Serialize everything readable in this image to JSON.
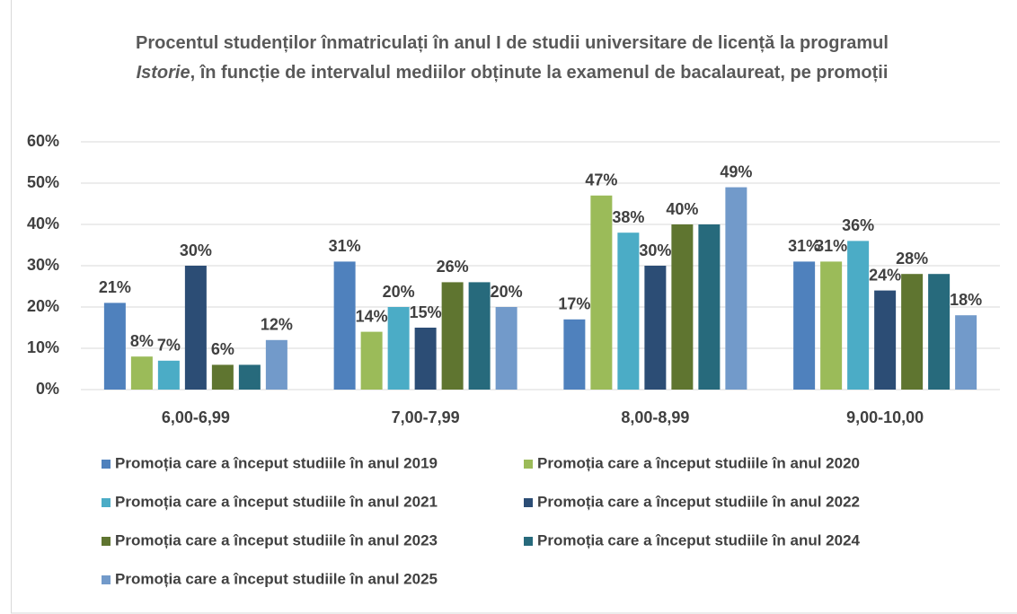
{
  "chart_data": {
    "type": "bar",
    "title": [
      "Procentul studenților înmatriculați în anul I de studii universitare de licență la programul ",
      "Istorie",
      ", în funcție de intervalul mediilor obținute la examenul de bacalaureat, pe promoții"
    ],
    "categories": [
      "6,00-6,99",
      "7,00-7,99",
      "8,00-8,99",
      "9,00-10,00"
    ],
    "series": [
      {
        "name": "Promoția care a început studiile în anul 2019",
        "color": "#4f81bd",
        "values": [
          21,
          31,
          17,
          31
        ],
        "value_labels": [
          "21%",
          "31%",
          "17%",
          "31%"
        ]
      },
      {
        "name": "Promoția care a început studiile în anul 2020",
        "color": "#9bbb59",
        "values": [
          8,
          14,
          47,
          31
        ],
        "value_labels": [
          "8%",
          "14%",
          "47%",
          "31%"
        ]
      },
      {
        "name": "Promoția care a început studiile în anul 2021",
        "color": "#4bacc6",
        "values": [
          7,
          20,
          38,
          36
        ],
        "value_labels": [
          "7%",
          "20%",
          "38%",
          "36%"
        ]
      },
      {
        "name": "Promoția care a început studiile în anul 2022",
        "color": "#2c4d75",
        "values": [
          30,
          15,
          30,
          24
        ],
        "value_labels": [
          "30%",
          "15%",
          "30%",
          "24%"
        ]
      },
      {
        "name": "Promoția care a început studiile în anul 2023",
        "color": "#5f7530",
        "values": [
          6,
          26,
          40,
          28
        ],
        "value_labels": [
          "6%",
          "26%",
          "40%",
          "28%"
        ]
      },
      {
        "name": "Promoția care a început studiile în anul 2024",
        "color": "#276a7c",
        "values": [
          6,
          26,
          40,
          28
        ]
      },
      {
        "name": "Promoția care a început studiile în anul 2025",
        "color": "#729aca",
        "values": [
          12,
          20,
          49,
          18
        ],
        "value_labels": [
          "12%",
          "20%",
          "49%",
          "18%"
        ]
      }
    ],
    "ylim": [
      0,
      60
    ],
    "yticks": [
      {
        "value": 0,
        "label": "0%"
      },
      {
        "value": 10,
        "label": "10%"
      },
      {
        "value": 20,
        "label": "20%"
      },
      {
        "value": 30,
        "label": "30%"
      },
      {
        "value": 40,
        "label": "40%"
      },
      {
        "value": 50,
        "label": "50%"
      },
      {
        "value": 60,
        "label": "60%"
      }
    ],
    "grid": true,
    "legend": "bottom"
  }
}
